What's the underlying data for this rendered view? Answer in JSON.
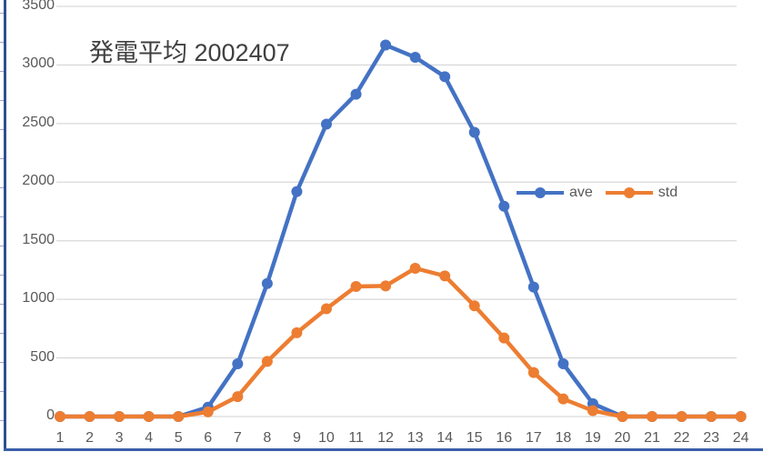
{
  "chart_data": {
    "type": "line",
    "title": "発電平均 2002407",
    "xlabel": "",
    "ylabel": "",
    "categories": [
      "1",
      "2",
      "3",
      "4",
      "5",
      "6",
      "7",
      "8",
      "9",
      "10",
      "11",
      "12",
      "13",
      "14",
      "15",
      "16",
      "17",
      "18",
      "19",
      "20",
      "21",
      "22",
      "23",
      "24"
    ],
    "series": [
      {
        "name": "ave",
        "color": "#4472c4",
        "values": [
          0,
          0,
          0,
          0,
          0,
          80,
          450,
          1135,
          1920,
          2495,
          2750,
          3170,
          3065,
          2900,
          2425,
          1795,
          1105,
          450,
          110,
          0,
          0,
          0,
          0,
          0
        ]
      },
      {
        "name": "std",
        "color": "#ed7d31",
        "values": [
          0,
          0,
          0,
          0,
          0,
          40,
          170,
          470,
          715,
          920,
          1110,
          1115,
          1265,
          1200,
          945,
          670,
          375,
          150,
          50,
          0,
          0,
          0,
          0,
          0
        ]
      }
    ],
    "ylim": [
      0,
      3500
    ],
    "yticks": [
      "0",
      "500",
      "1000",
      "1500",
      "2000",
      "2500",
      "3000",
      "3500"
    ],
    "grid": true,
    "legend_position": "right-middle (inside plot)"
  },
  "title": "発電平均 2002407",
  "legend": [
    {
      "label": "ave",
      "color": "#4472c4"
    },
    {
      "label": "std",
      "color": "#ed7d31"
    }
  ],
  "yaxis": {
    "ticks": [
      "3500",
      "3000",
      "2500",
      "2000",
      "1500",
      "1000",
      "500",
      "0"
    ]
  },
  "xaxis": {
    "ticks": [
      "1",
      "2",
      "3",
      "4",
      "5",
      "6",
      "7",
      "8",
      "9",
      "10",
      "11",
      "12",
      "13",
      "14",
      "15",
      "16",
      "17",
      "18",
      "19",
      "20",
      "21",
      "22",
      "23",
      "24"
    ]
  },
  "colors": {
    "gridline": "#d9d9d9",
    "frame": "#2f4f8f",
    "axis_text": "#595959",
    "title_text": "#404040"
  }
}
